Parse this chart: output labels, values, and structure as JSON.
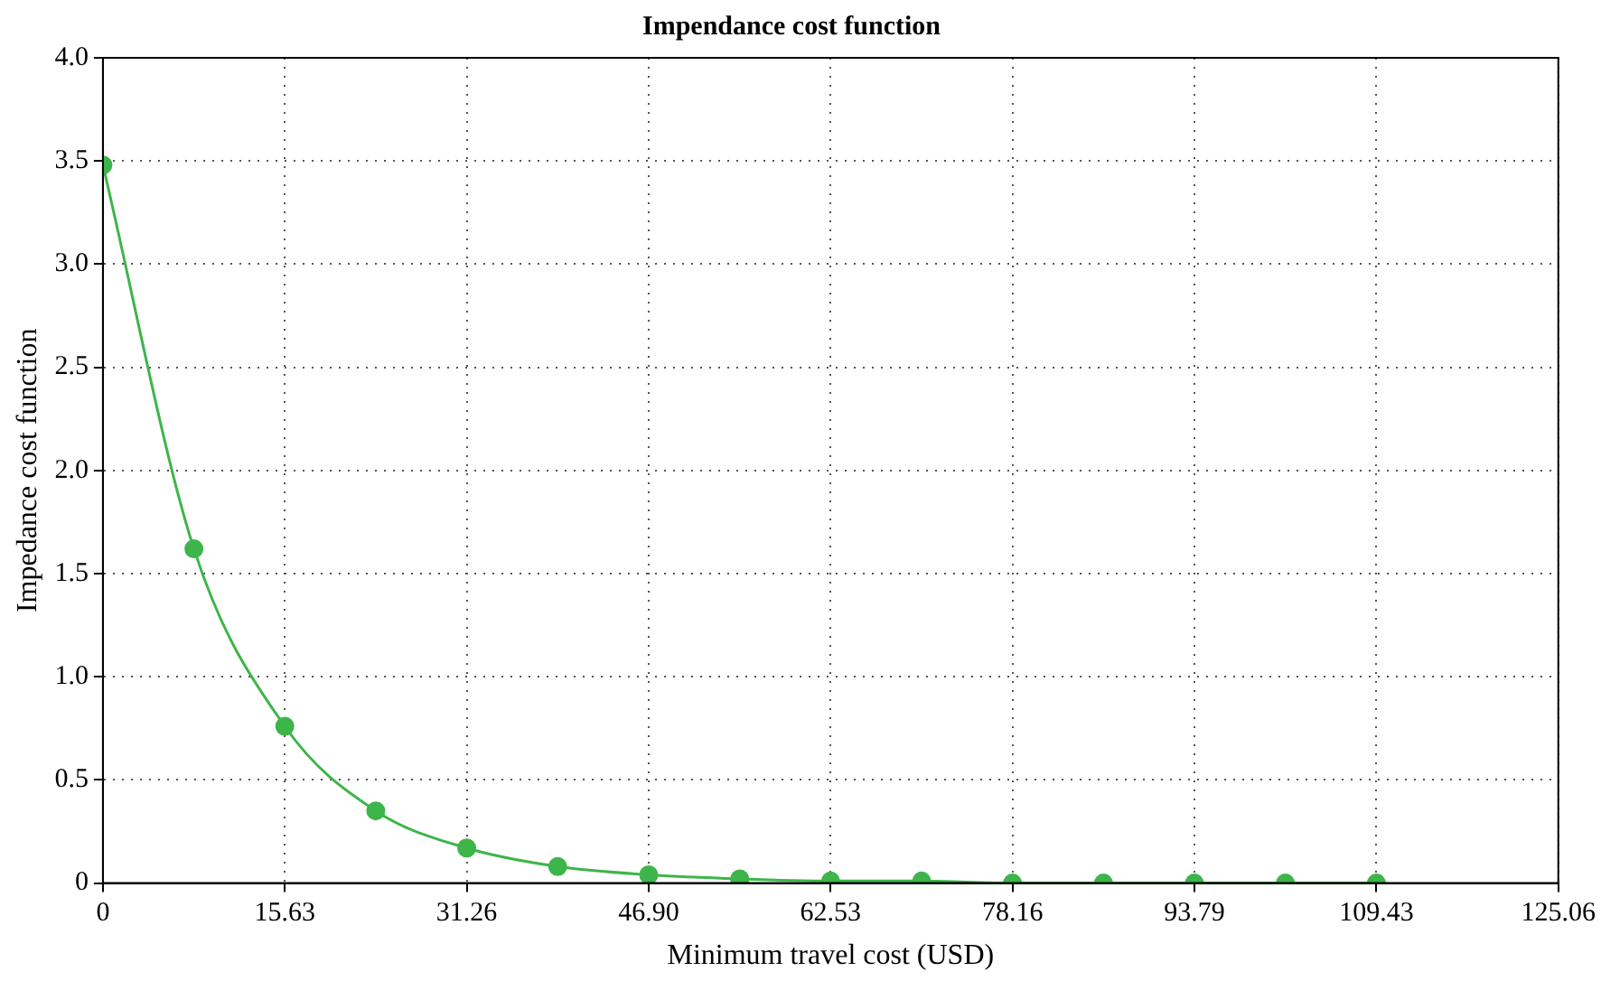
{
  "chart_data": {
    "type": "line",
    "title": "Impendance cost function",
    "xlabel": "Minimum travel cost (USD)",
    "ylabel": "Impedance cost function",
    "x": [
      0,
      7.82,
      15.63,
      23.45,
      31.26,
      39.08,
      46.9,
      54.72,
      62.53,
      70.35,
      78.16,
      85.98,
      93.79,
      101.61,
      109.43
    ],
    "series": [
      {
        "color": "#3db54a",
        "values": [
          3.48,
          1.62,
          0.76,
          0.35,
          0.17,
          0.08,
          0.04,
          0.02,
          0.01,
          0.01,
          0,
          0,
          0,
          0,
          0
        ]
      }
    ],
    "xlim": [
      0,
      125.06
    ],
    "xticks": [
      0,
      15.63,
      31.26,
      {
        "value": 46.9,
        "label": "46.90"
      },
      62.53,
      78.16,
      93.79,
      109.43,
      125.06
    ],
    "ylim": [
      0,
      4
    ],
    "yticks": [
      0,
      0.5,
      {
        "value": 1,
        "label": "1.0"
      },
      1.5,
      {
        "value": 2,
        "label": "2.0"
      },
      2.5,
      {
        "value": 3,
        "label": "3.0"
      },
      3.5,
      {
        "value": 4,
        "label": "4.0"
      }
    ],
    "grid": true,
    "marker": "circle",
    "line_style": "solid"
  }
}
